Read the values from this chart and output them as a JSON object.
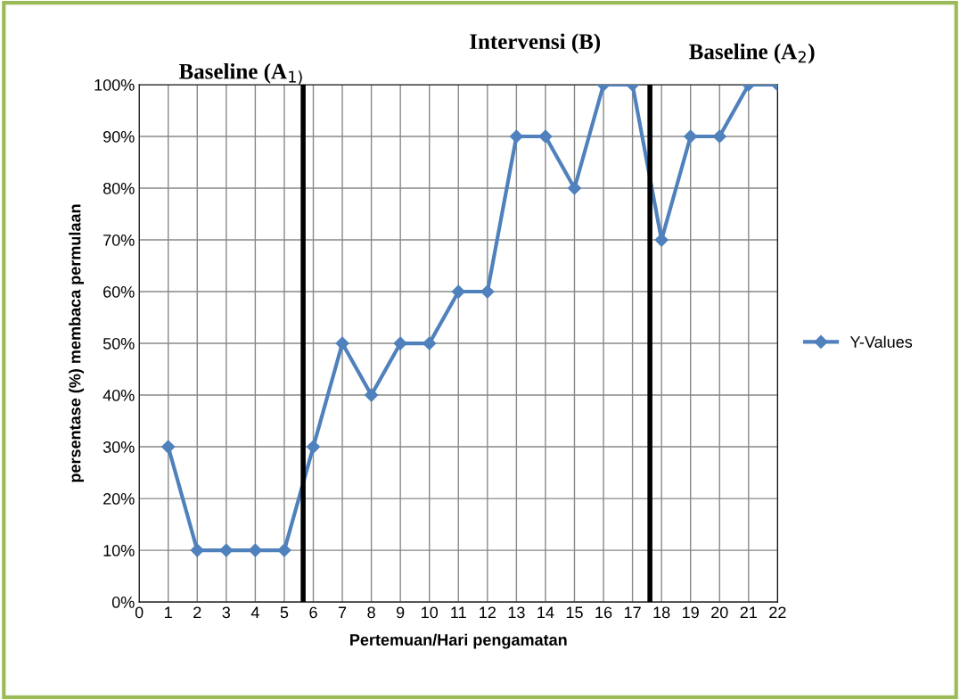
{
  "chart_data": {
    "type": "line",
    "xlabel": "Pertemuan/Hari pengamatan",
    "ylabel": "persentase (%) membaca permulaan",
    "x": [
      1,
      2,
      3,
      4,
      5,
      6,
      7,
      8,
      9,
      10,
      11,
      12,
      13,
      14,
      15,
      16,
      17,
      18,
      19,
      20,
      21,
      22
    ],
    "series": [
      {
        "name": "Y-Values",
        "color": "#4f81bd",
        "values": [
          30,
          10,
          10,
          10,
          10,
          30,
          50,
          40,
          50,
          50,
          60,
          60,
          90,
          90,
          80,
          100,
          100,
          70,
          90,
          90,
          100,
          100
        ]
      }
    ],
    "xlim": [
      0,
      22
    ],
    "xticks": [
      0,
      1,
      2,
      3,
      4,
      5,
      6,
      7,
      8,
      9,
      10,
      11,
      12,
      13,
      14,
      15,
      16,
      17,
      18,
      19,
      20,
      21,
      22
    ],
    "ylim": [
      0,
      100
    ],
    "yticks": [
      {
        "value": 0,
        "label": "0%"
      },
      {
        "value": 10,
        "label": "10%"
      },
      {
        "value": 20,
        "label": "20%"
      },
      {
        "value": 30,
        "label": "30%"
      },
      {
        "value": 40,
        "label": "40%"
      },
      {
        "value": 50,
        "label": "50%"
      },
      {
        "value": 60,
        "label": "60%"
      },
      {
        "value": 70,
        "label": "70%"
      },
      {
        "value": 80,
        "label": "80%"
      },
      {
        "value": 90,
        "label": "90%"
      },
      {
        "value": 100,
        "label": "100%"
      }
    ],
    "ref_lines": [
      {
        "axis": "x",
        "value": 5.65,
        "color": "#000000"
      },
      {
        "axis": "x",
        "value": 17.6,
        "color": "#000000"
      }
    ],
    "annotations": [
      "Baseline (A$_{1)}$",
      "Intervensi (B)",
      "Baseline (A$_{2}$)"
    ],
    "grid": true,
    "legend": "right",
    "marker": "diamond",
    "line_style": "solid"
  }
}
